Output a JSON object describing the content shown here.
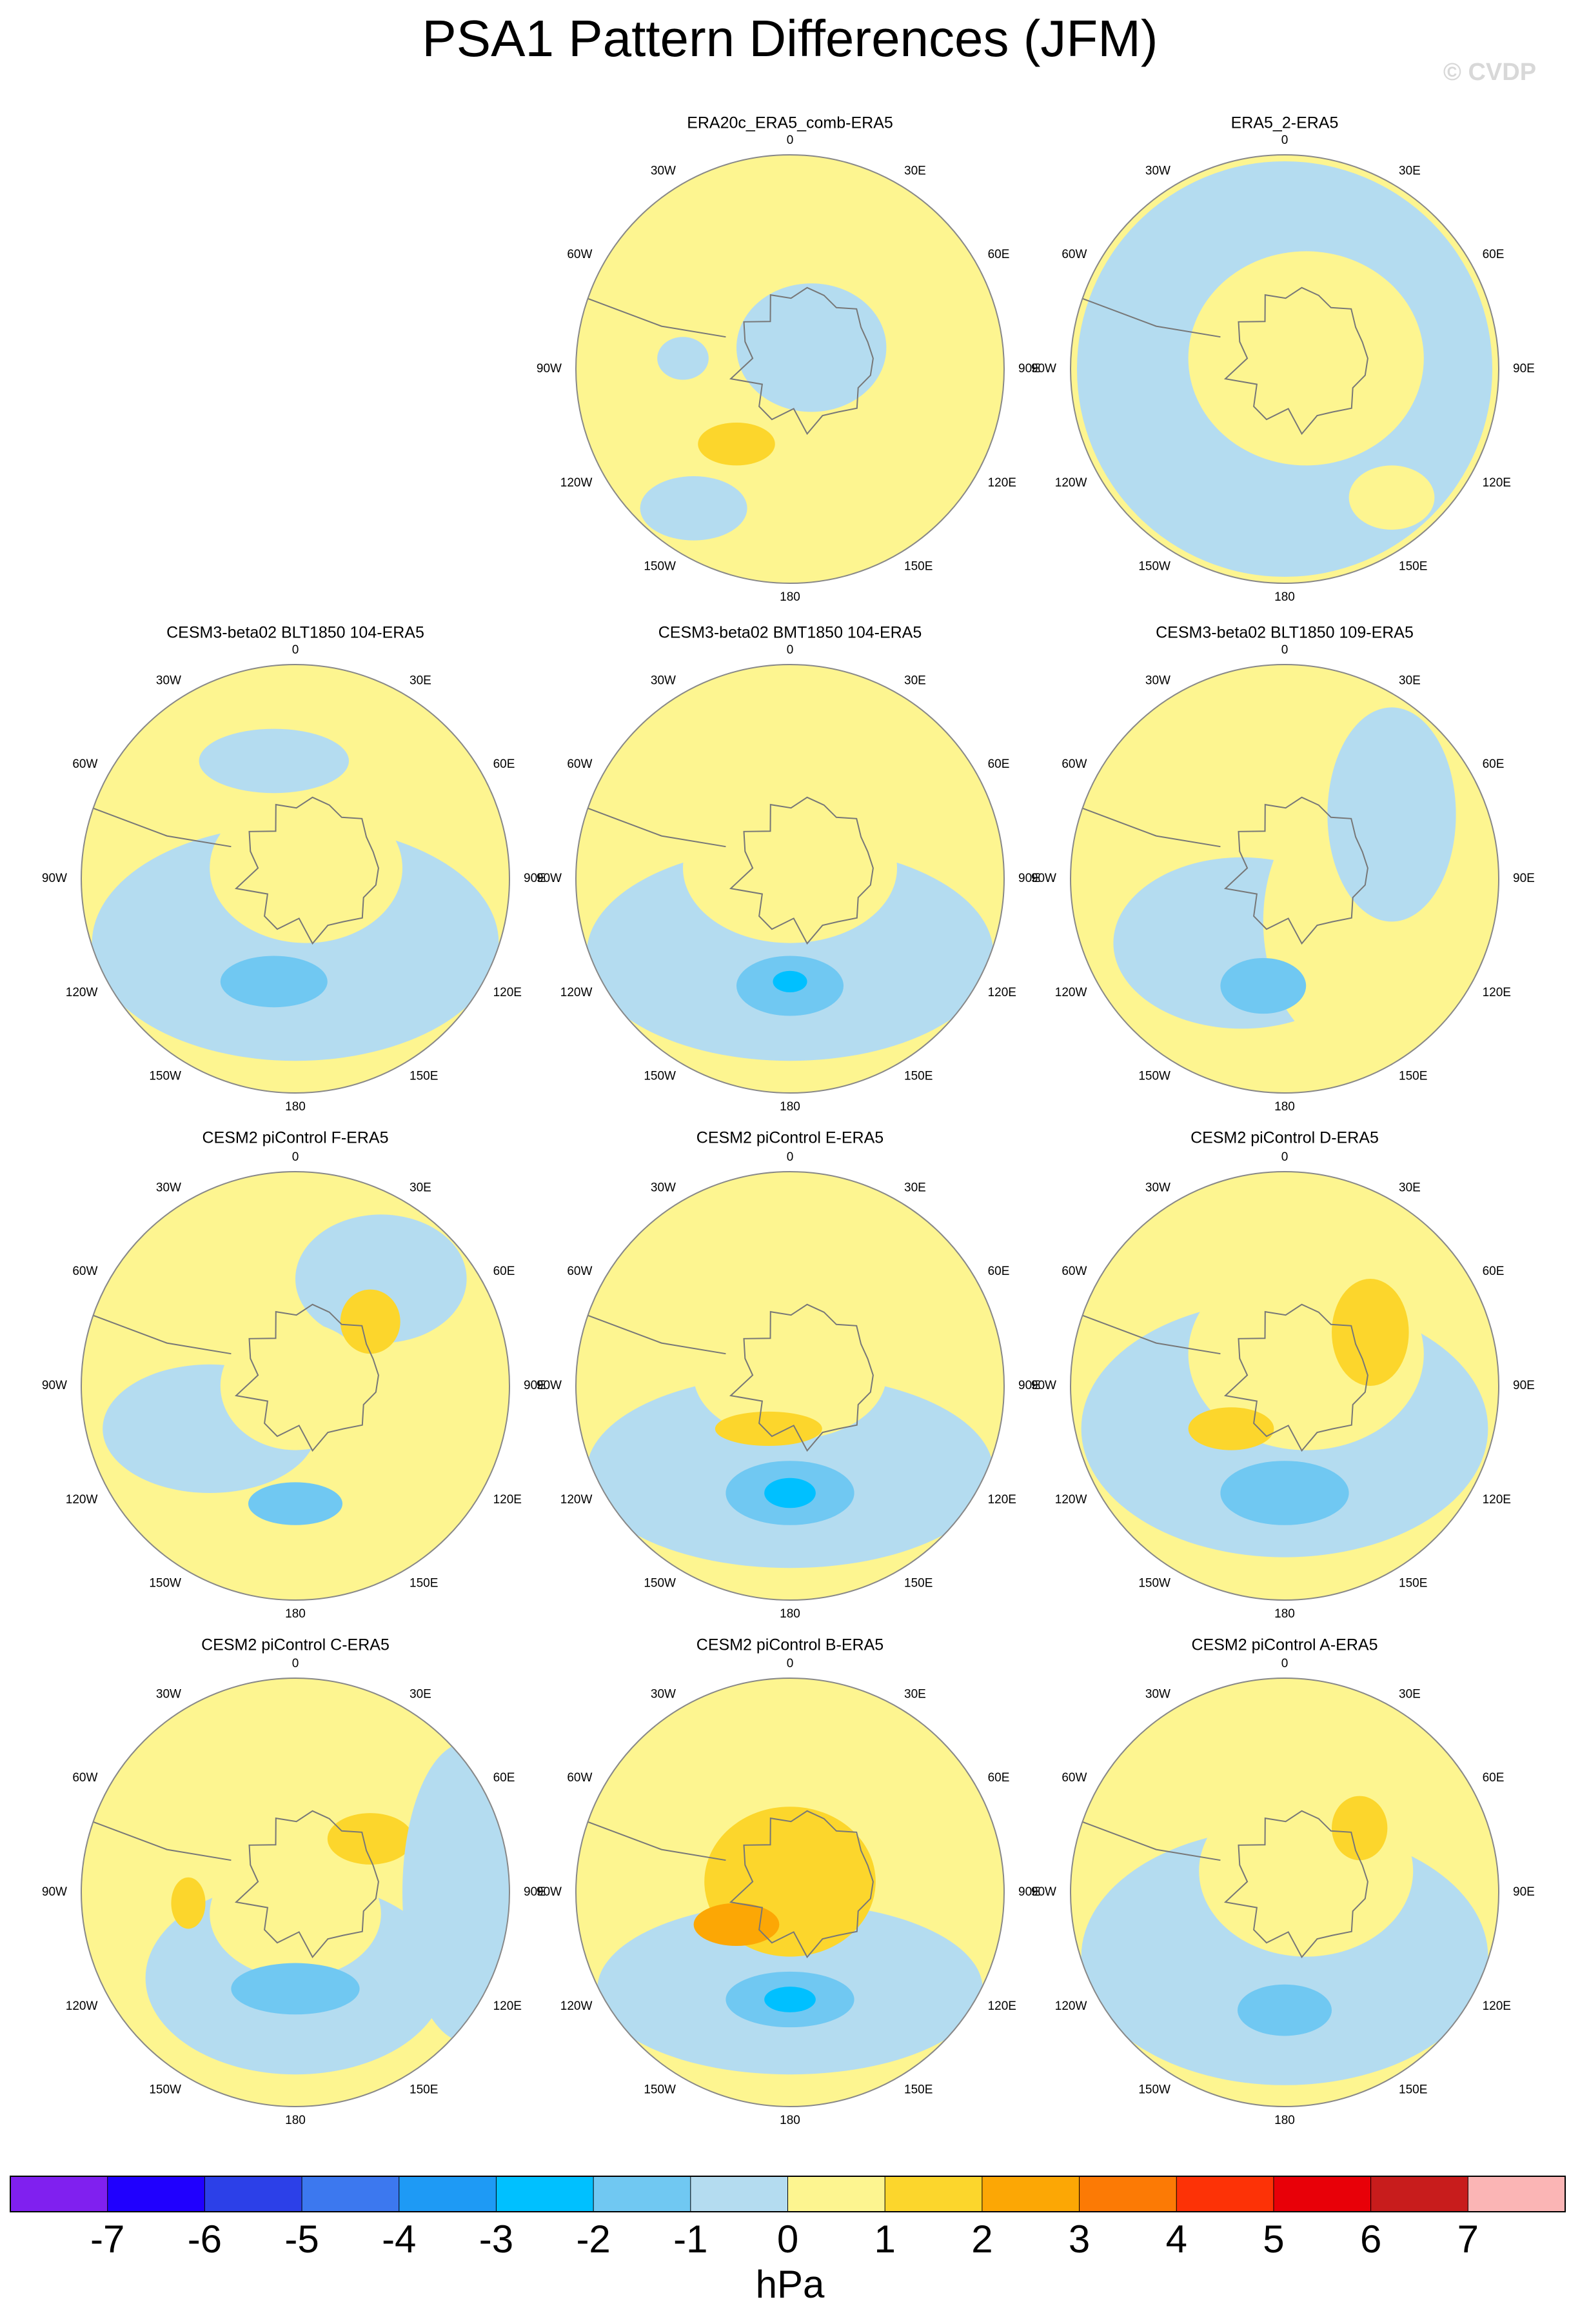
{
  "title": "PSA1 Pattern Differences (JFM)",
  "watermark": "© CVDP",
  "panels": [
    {
      "title": "ERA20c_ERA5_comb-ERA5"
    },
    {
      "title": "ERA5_2-ERA5"
    },
    {
      "title": "CESM3-beta02 BLT1850 104-ERA5"
    },
    {
      "title": "CESM3-beta02 BMT1850 104-ERA5"
    },
    {
      "title": "CESM3-beta02 BLT1850 109-ERA5"
    },
    {
      "title": "CESM2 piControl F-ERA5"
    },
    {
      "title": "CESM2 piControl E-ERA5"
    },
    {
      "title": "CESM2 piControl D-ERA5"
    },
    {
      "title": "CESM2 piControl C-ERA5"
    },
    {
      "title": "CESM2 piControl B-ERA5"
    },
    {
      "title": "CESM2 piControl A-ERA5"
    }
  ],
  "longitude_labels": [
    "0",
    "30E",
    "60E",
    "90E",
    "120E",
    "150E",
    "180",
    "150W",
    "120W",
    "90W",
    "60W",
    "30W"
  ],
  "colorbar": {
    "ticks": [
      -7,
      -6,
      -5,
      -4,
      -3,
      -2,
      -1,
      0,
      1,
      2,
      3,
      4,
      5,
      6,
      7
    ],
    "colors": [
      "#8020ef",
      "#2000fe",
      "#2c40e8",
      "#3c78ef",
      "#1e9af5",
      "#00c0ff",
      "#70c8f2",
      "#b4dcf0",
      "#fdf590",
      "#fcd62c",
      "#fca705",
      "#fc7a05",
      "#fd3206",
      "#e80008",
      "#c81c1c",
      "#fbb5b5"
    ],
    "unit": "hPa"
  }
}
